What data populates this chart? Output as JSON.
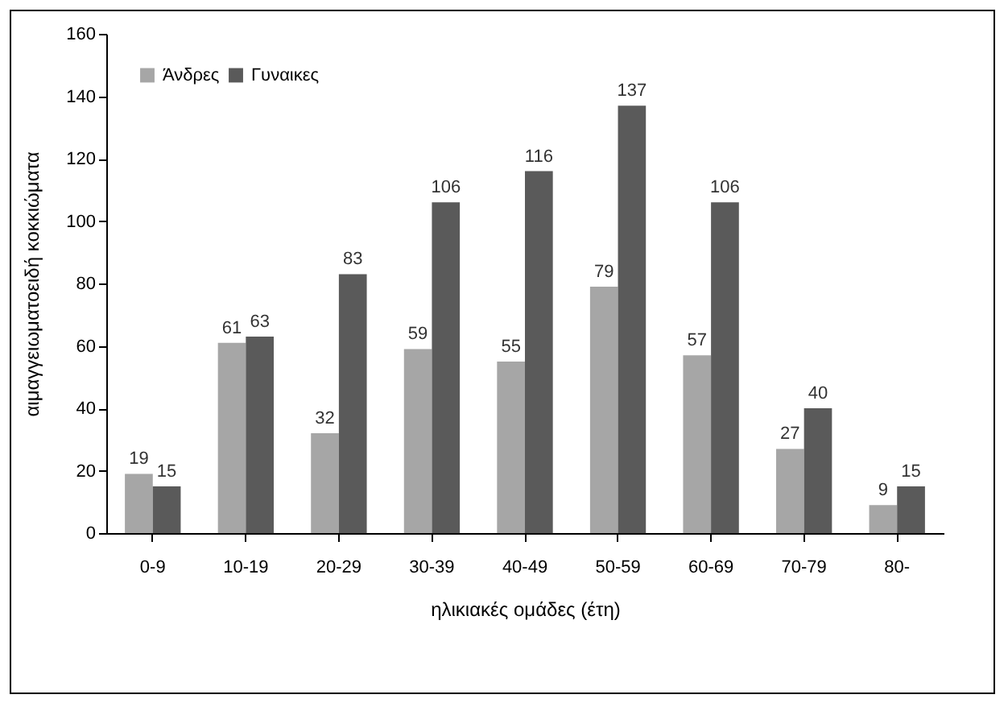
{
  "chart_data": {
    "type": "bar",
    "xlabel": "ηλικιακές ομάδες (έτη)",
    "ylabel": "αιμαγγειωματοειδή κοκκιώματα",
    "categories": [
      "0-9",
      "10-19",
      "20-29",
      "30-39",
      "40-49",
      "50-59",
      "60-69",
      "70-79",
      "80-"
    ],
    "series": [
      {
        "name": "Άνδρες",
        "color": "#a6a6a6",
        "values": [
          19,
          61,
          32,
          59,
          55,
          79,
          57,
          27,
          9
        ]
      },
      {
        "name": "Γυναικες",
        "color": "#5a5a5a",
        "values": [
          15,
          63,
          83,
          106,
          116,
          137,
          106,
          40,
          15
        ]
      }
    ],
    "ylim": [
      0,
      160
    ],
    "yticks": [
      0,
      20,
      40,
      60,
      80,
      100,
      120,
      140,
      160
    ],
    "grid": false,
    "legend": "top left",
    "data_labels": true
  }
}
